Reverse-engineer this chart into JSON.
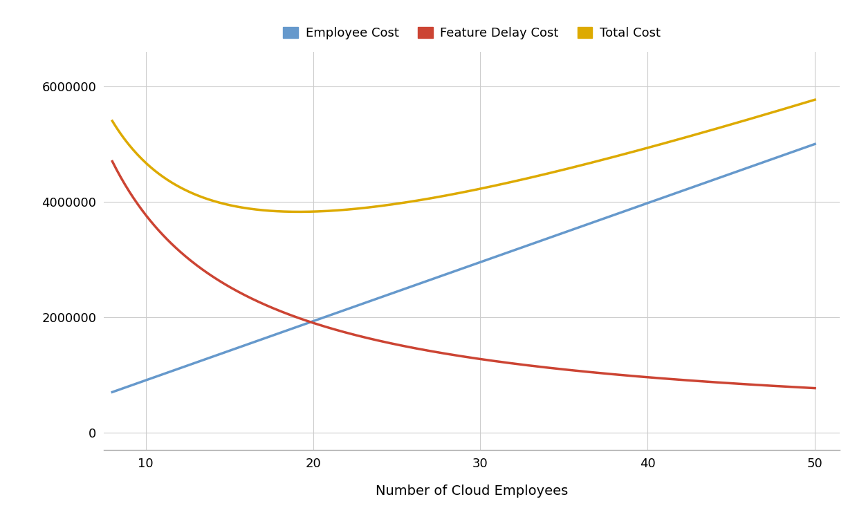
{
  "title": "",
  "xlabel": "Number of Cloud Employees",
  "ylabel": "",
  "x_start": 8,
  "x_end": 50,
  "x_ticks": [
    10,
    20,
    30,
    40,
    50
  ],
  "y_ticks": [
    0,
    2000000,
    4000000,
    6000000
  ],
  "ylim": [
    -300000,
    6600000
  ],
  "xlim": [
    7.5,
    51.5
  ],
  "legend_labels": [
    "Employee Cost",
    "Feature Delay Cost",
    "Total Cost"
  ],
  "line_colors": {
    "employee": "#6699cc",
    "feature_delay": "#cc4433",
    "total": "#ddaa00"
  },
  "line_width": 2.5,
  "background_color": "#ffffff",
  "grid_color": "#cccccc",
  "legend_fontsize": 13,
  "xlabel_fontsize": 14,
  "tick_fontsize": 13
}
